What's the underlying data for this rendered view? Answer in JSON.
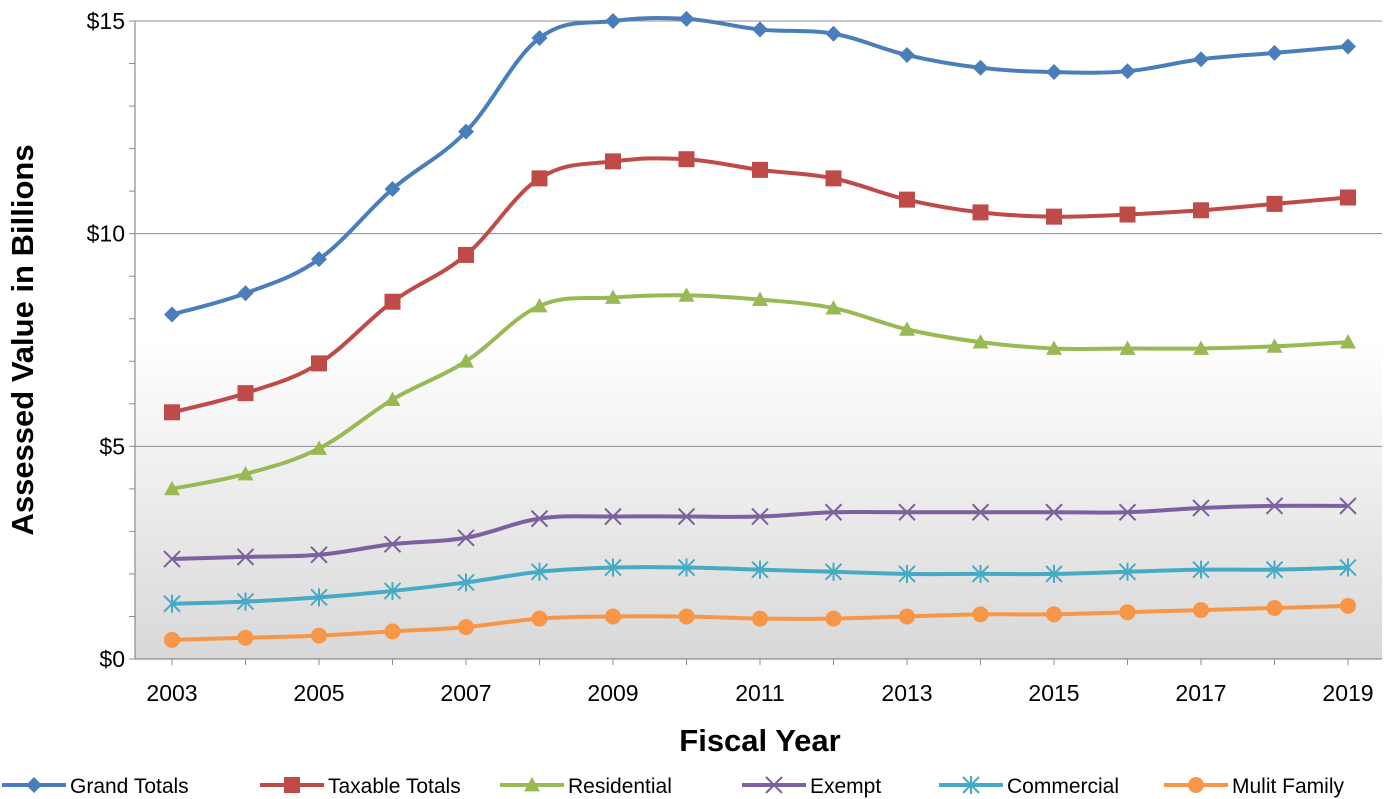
{
  "chart_data": {
    "type": "line",
    "title": "",
    "xlabel": "Fiscal Year",
    "ylabel": "Assessed Value in Billions",
    "x": [
      2003,
      2004,
      2005,
      2006,
      2007,
      2008,
      2009,
      2010,
      2011,
      2012,
      2013,
      2014,
      2015,
      2016,
      2017,
      2018,
      2019
    ],
    "x_tick_labels": [
      "2003",
      "2005",
      "2007",
      "2009",
      "2011",
      "2013",
      "2015",
      "2017",
      "2019"
    ],
    "y_tick_labels": [
      "$0",
      "$5",
      "$10",
      "$15"
    ],
    "ylim": [
      0,
      15
    ],
    "grid": "horizontal major gridlines",
    "legend_position": "bottom",
    "series": [
      {
        "name": "Grand Totals",
        "color": "#4a7ebb",
        "marker": "diamond",
        "values": [
          8.1,
          8.6,
          9.4,
          11.05,
          12.4,
          14.6,
          15.0,
          15.05,
          14.8,
          14.7,
          14.2,
          13.9,
          13.8,
          13.82,
          14.1,
          14.25,
          14.4
        ]
      },
      {
        "name": "Taxable Totals",
        "color": "#be4b48",
        "marker": "square",
        "values": [
          5.8,
          6.25,
          6.95,
          8.4,
          9.5,
          11.3,
          11.7,
          11.75,
          11.5,
          11.3,
          10.8,
          10.5,
          10.4,
          10.45,
          10.55,
          10.7,
          10.85
        ]
      },
      {
        "name": "Residential",
        "color": "#98b954",
        "marker": "triangle",
        "values": [
          4.0,
          4.35,
          4.95,
          6.1,
          7.0,
          8.3,
          8.5,
          8.55,
          8.45,
          8.25,
          7.75,
          7.45,
          7.3,
          7.3,
          7.3,
          7.35,
          7.45
        ]
      },
      {
        "name": "Exempt",
        "color": "#7d60a0",
        "marker": "x",
        "values": [
          2.35,
          2.4,
          2.45,
          2.7,
          2.85,
          3.3,
          3.35,
          3.35,
          3.35,
          3.45,
          3.45,
          3.45,
          3.45,
          3.45,
          3.55,
          3.6,
          3.6
        ]
      },
      {
        "name": "Commercial",
        "color": "#46aac5",
        "marker": "star",
        "values": [
          1.3,
          1.35,
          1.45,
          1.6,
          1.8,
          2.05,
          2.15,
          2.15,
          2.1,
          2.05,
          2.0,
          2.0,
          2.0,
          2.05,
          2.1,
          2.1,
          2.15
        ]
      },
      {
        "name": "Mulit Family",
        "color": "#f79646",
        "marker": "circle",
        "values": [
          0.45,
          0.5,
          0.55,
          0.65,
          0.75,
          0.95,
          1.0,
          1.0,
          0.95,
          0.95,
          1.0,
          1.05,
          1.05,
          1.1,
          1.15,
          1.2,
          1.25
        ]
      }
    ]
  }
}
